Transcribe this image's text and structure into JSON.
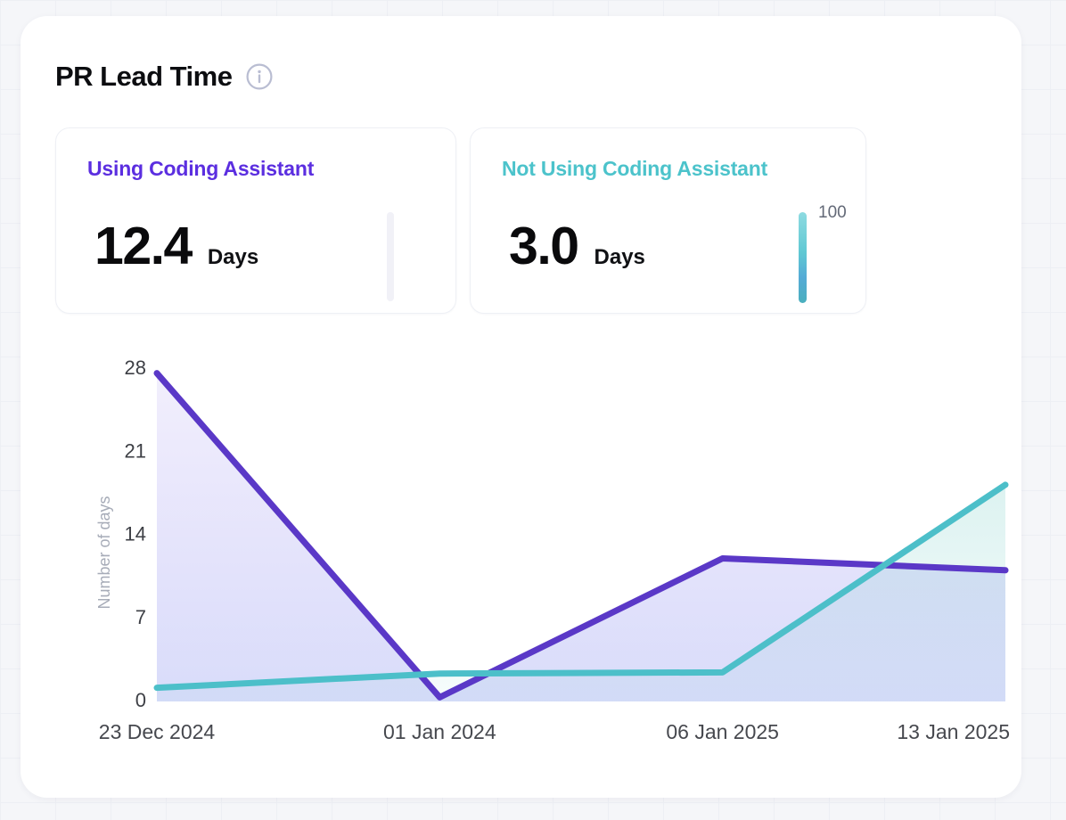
{
  "header": {
    "title": "PR Lead Time"
  },
  "stats": [
    {
      "label": "Using Coding Assistant",
      "value": "12.4",
      "unit": "Days",
      "accent": "#5b2ee0",
      "bar_color": "#f1f1f7",
      "scale_label": ""
    },
    {
      "label": "Not Using Coding Assistant",
      "value": "3.0",
      "unit": "Days",
      "accent": "#4cc3cb",
      "bar_gradient": [
        "#8edbe1",
        "#5fc8d3",
        "#55abd6",
        "#4aafbe"
      ],
      "scale_label": "100"
    }
  ],
  "chart_data": {
    "type": "line",
    "categories": [
      "23 Dec 2024",
      "01 Jan 2024",
      "06 Jan 2025",
      "13 Jan 2025"
    ],
    "series": [
      {
        "name": "Using Coding Assistant",
        "color": "#5a38c7",
        "fill_top": "rgba(122, 96, 231, 0.10)",
        "fill_bottom": "rgba(113, 126, 238, 0.27)",
        "values": [
          27.5,
          0.2,
          11.9,
          10.9
        ]
      },
      {
        "name": "Not Using Coding Assistant",
        "color": "#4cbfc9",
        "fill_top": "rgba(97, 197, 189, 0.22)",
        "fill_bottom": "rgba(97, 197, 189, 0.05)",
        "values": [
          1.0,
          2.2,
          2.3,
          18.1
        ]
      }
    ],
    "title": "PR Lead Time",
    "xlabel": "",
    "ylabel": "Number of days",
    "yticks": [
      0,
      7,
      14,
      21,
      28
    ],
    "ylim": [
      0,
      28
    ],
    "grid": false,
    "legend": "none",
    "tick_color": "#3d3f45",
    "xlabel_color": "#46484e",
    "ylabel_color": "#a7acb8"
  }
}
